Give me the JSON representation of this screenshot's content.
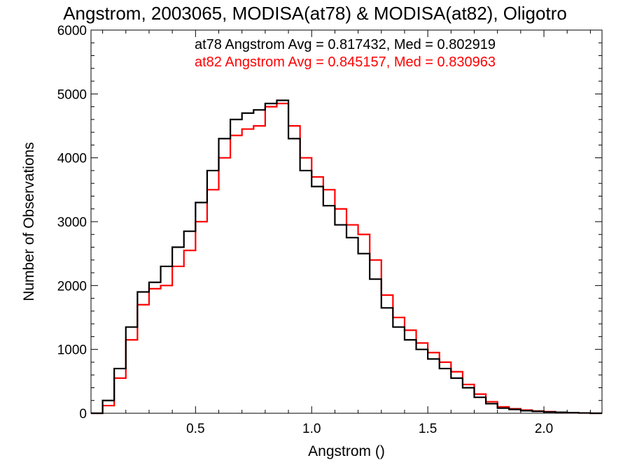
{
  "chart_data": {
    "type": "line",
    "title": "Angstrom, 2003065, MODISA(at78) & MODISA(at82), Oligotro",
    "xlabel": "Angstrom ()",
    "ylabel": "Number of Observations",
    "xlim": [
      0.05,
      2.25
    ],
    "ylim": [
      0,
      6000
    ],
    "xticks": [
      0.5,
      1.0,
      1.5,
      2.0
    ],
    "xtick_labels": [
      "0.5",
      "1.0",
      "1.5",
      "2.0"
    ],
    "yticks": [
      0,
      1000,
      2000,
      3000,
      4000,
      5000,
      6000
    ],
    "ytick_labels": [
      "0",
      "1000",
      "2000",
      "3000",
      "4000",
      "5000",
      "6000"
    ],
    "grid": false,
    "legend_position": "top-right",
    "colors": {
      "at78": "#000000",
      "at82": "#ff0000"
    },
    "annotations": [
      {
        "text": "at78 Angstrom Avg = 0.817432, Med = 0.802919",
        "color": "#000000"
      },
      {
        "text": "at82 Angstrom Avg = 0.845157, Med = 0.830963",
        "color": "#ff0000"
      }
    ],
    "x": [
      0.05,
      0.1,
      0.15,
      0.2,
      0.25,
      0.3,
      0.35,
      0.4,
      0.45,
      0.5,
      0.55,
      0.6,
      0.65,
      0.7,
      0.75,
      0.8,
      0.85,
      0.9,
      0.95,
      1.0,
      1.05,
      1.1,
      1.15,
      1.2,
      1.25,
      1.3,
      1.35,
      1.4,
      1.45,
      1.5,
      1.55,
      1.6,
      1.65,
      1.7,
      1.75,
      1.8,
      1.85,
      1.9,
      1.95,
      2.0,
      2.05,
      2.1,
      2.15,
      2.2,
      2.25
    ],
    "series": [
      {
        "name": "at78",
        "values": [
          0,
          200,
          700,
          1350,
          1900,
          2050,
          2300,
          2600,
          2850,
          3300,
          3800,
          4300,
          4600,
          4700,
          4750,
          4850,
          4900,
          4300,
          3800,
          3550,
          3250,
          2950,
          2750,
          2500,
          2100,
          1650,
          1350,
          1150,
          1000,
          850,
          700,
          550,
          400,
          250,
          150,
          80,
          60,
          40,
          30,
          20,
          15,
          10,
          5,
          0,
          0
        ]
      },
      {
        "name": "at82",
        "values": [
          0,
          120,
          550,
          1150,
          1700,
          1950,
          2000,
          2300,
          2550,
          3000,
          3500,
          4000,
          4350,
          4450,
          4500,
          4800,
          4850,
          4500,
          4000,
          3700,
          3500,
          3200,
          2950,
          2800,
          2400,
          1850,
          1500,
          1300,
          1100,
          950,
          800,
          650,
          450,
          300,
          180,
          100,
          70,
          50,
          35,
          25,
          15,
          10,
          5,
          0,
          0
        ]
      }
    ]
  }
}
